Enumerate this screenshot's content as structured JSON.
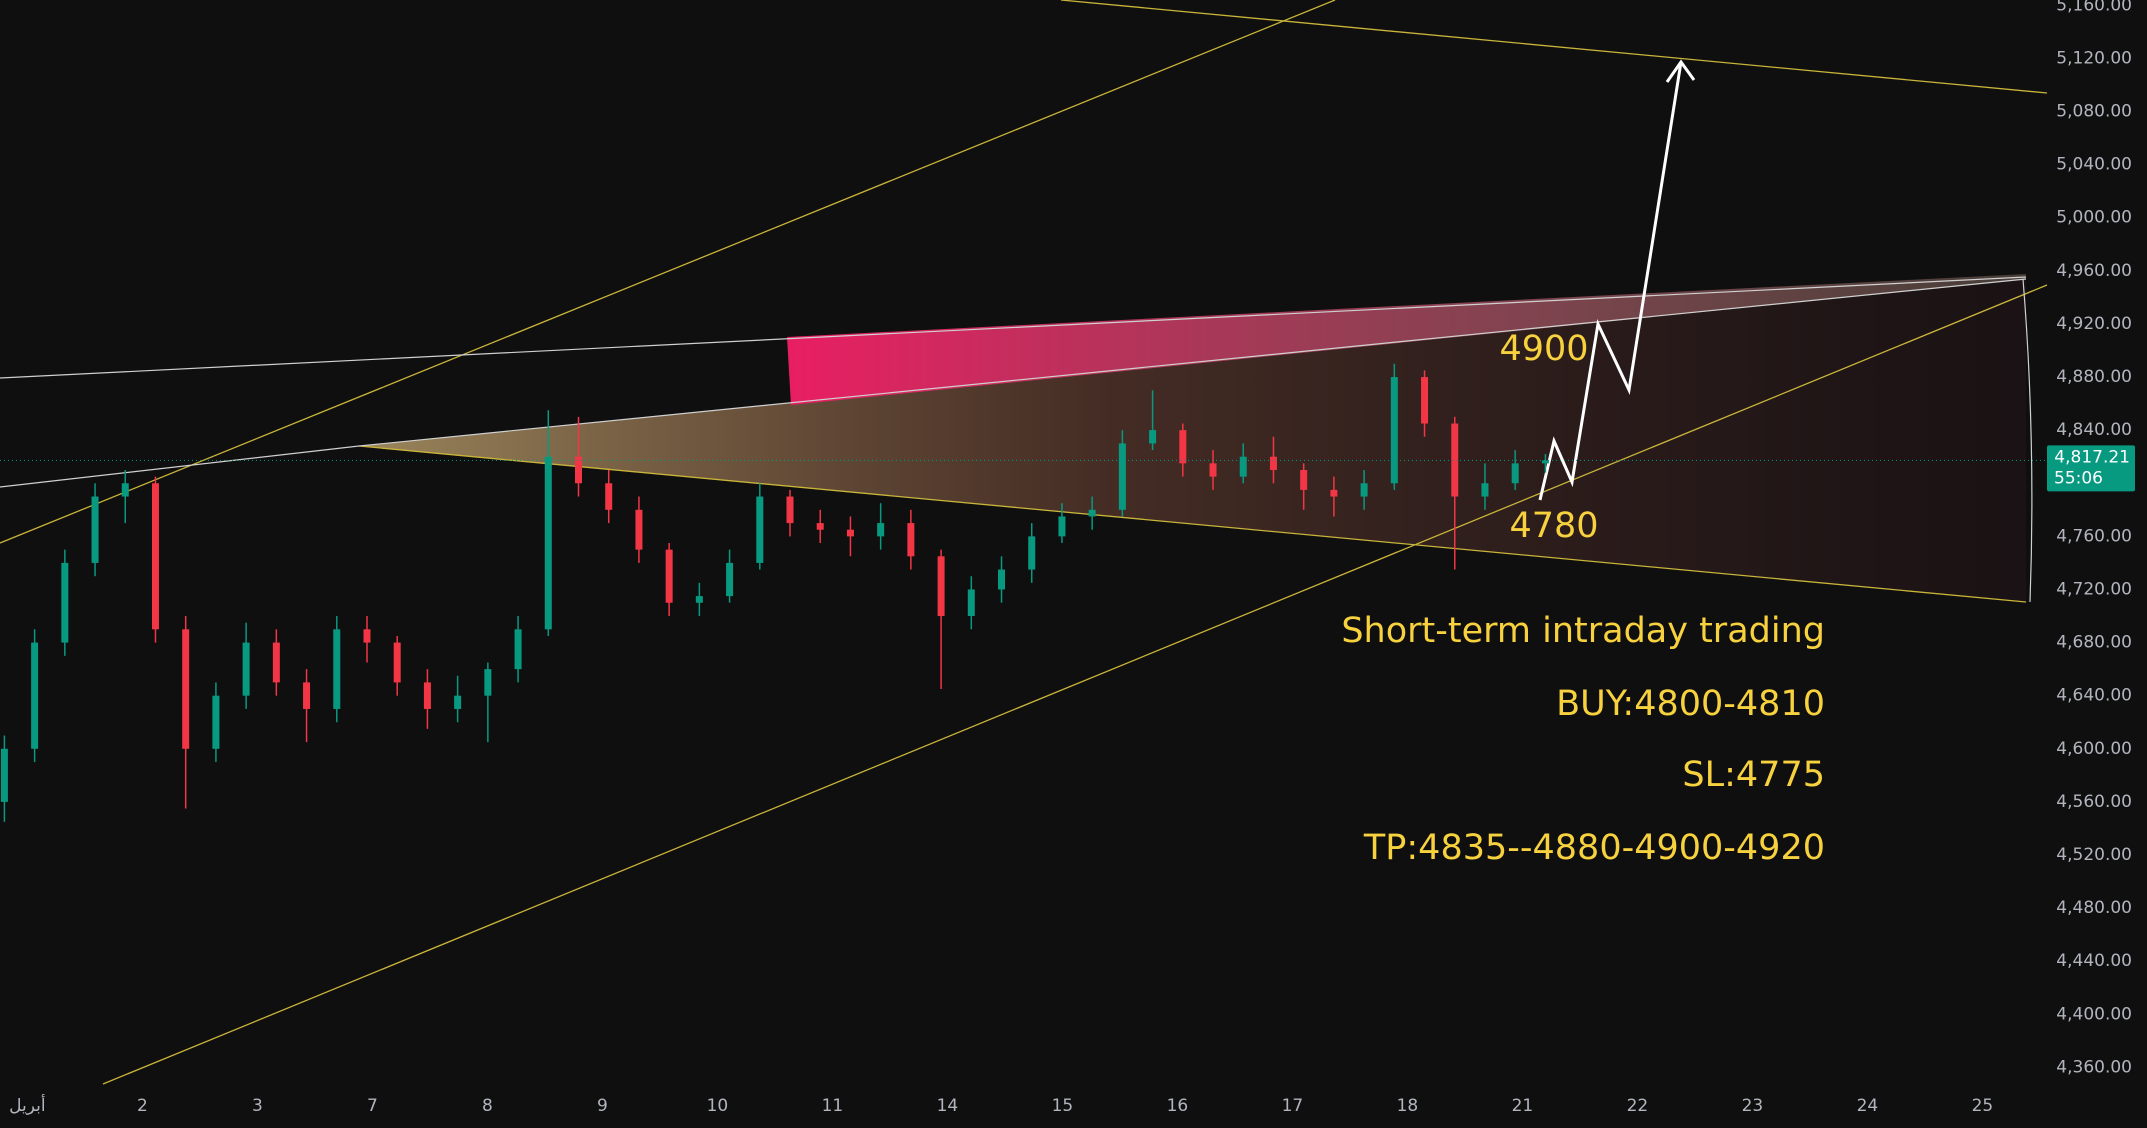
{
  "chart_data": {
    "type": "candlestick",
    "categories": [
      "أبريل",
      "2",
      "3",
      "7",
      "8",
      "9",
      "10",
      "11",
      "14",
      "15",
      "16",
      "17",
      "18",
      "21",
      "22",
      "23",
      "24",
      "25"
    ],
    "open": [
      4560,
      4600,
      4680,
      4740,
      4790,
      4800,
      4690,
      4600,
      4640,
      4680,
      4650,
      4630,
      4690,
      4680,
      4650,
      4630,
      4640,
      4660,
      4690,
      4820,
      4800,
      4780,
      4750,
      4710,
      4715,
      4740,
      4790,
      4770,
      4765,
      4760,
      4770,
      4745,
      4700,
      4720,
      4735,
      4760,
      4775,
      4780,
      4830,
      4840,
      4815,
      4805,
      4820,
      4810,
      4795,
      4790,
      4800,
      4880,
      4845,
      4790,
      4800,
      4815
    ],
    "high": [
      4610,
      4690,
      4750,
      4800,
      4810,
      4805,
      4700,
      4650,
      4695,
      4690,
      4660,
      4700,
      4700,
      4685,
      4660,
      4655,
      4665,
      4700,
      4855,
      4850,
      4810,
      4790,
      4755,
      4725,
      4750,
      4800,
      4795,
      4780,
      4775,
      4785,
      4780,
      4750,
      4730,
      4745,
      4770,
      4785,
      4790,
      4840,
      4870,
      4845,
      4825,
      4830,
      4835,
      4815,
      4805,
      4810,
      4890,
      4885,
      4850,
      4815,
      4825,
      4822
    ],
    "low": [
      4545,
      4590,
      4670,
      4730,
      4770,
      4680,
      4555,
      4590,
      4630,
      4640,
      4605,
      4620,
      4665,
      4640,
      4615,
      4620,
      4605,
      4650,
      4685,
      4790,
      4770,
      4740,
      4700,
      4700,
      4710,
      4735,
      4760,
      4755,
      4745,
      4750,
      4735,
      4645,
      4690,
      4710,
      4725,
      4755,
      4765,
      4775,
      4825,
      4805,
      4795,
      4800,
      4800,
      4780,
      4775,
      4780,
      4795,
      4835,
      4735,
      4780,
      4795,
      4808
    ],
    "close": [
      4600,
      4680,
      4740,
      4790,
      4800,
      4690,
      4600,
      4640,
      4680,
      4650,
      4630,
      4690,
      4680,
      4650,
      4630,
      4640,
      4660,
      4690,
      4820,
      4800,
      4780,
      4750,
      4710,
      4715,
      4740,
      4790,
      4770,
      4765,
      4760,
      4770,
      4745,
      4700,
      4720,
      4735,
      4760,
      4775,
      4780,
      4830,
      4840,
      4815,
      4805,
      4820,
      4810,
      4795,
      4790,
      4800,
      4880,
      4845,
      4790,
      4800,
      4815,
      4817.21
    ],
    "up_color": "#089981",
    "down_color": "#f23645",
    "ylim": [
      4343,
      5164
    ],
    "yticks": [
      {
        "value": 5160,
        "label": "5,160.00"
      },
      {
        "value": 5120,
        "label": "5,120.00"
      },
      {
        "value": 5080,
        "label": "5,080.00"
      },
      {
        "value": 5040,
        "label": "5,040.00"
      },
      {
        "value": 5000,
        "label": "5,000.00"
      },
      {
        "value": 4960,
        "label": "4,960.00"
      },
      {
        "value": 4920,
        "label": "4,920.00"
      },
      {
        "value": 4880,
        "label": "4,880.00"
      },
      {
        "value": 4840,
        "label": "4,840.00"
      },
      {
        "value": 4800,
        "label": "4,800.00"
      },
      {
        "value": 4760,
        "label": "4,760.00"
      },
      {
        "value": 4720,
        "label": "4,720.00"
      },
      {
        "value": 4680,
        "label": "4,680.00"
      },
      {
        "value": 4640,
        "label": "4,640.00"
      },
      {
        "value": 4600,
        "label": "4,600.00"
      },
      {
        "value": 4560,
        "label": "4,560.00"
      },
      {
        "value": 4520,
        "label": "4,520.00"
      },
      {
        "value": 4480,
        "label": "4,480.00"
      },
      {
        "value": 4440,
        "label": "4,440.00"
      },
      {
        "value": 4400,
        "label": "4,400.00"
      },
      {
        "value": 4360,
        "label": "4,360.00"
      }
    ],
    "grid": false,
    "last_price": {
      "value": 4817.21,
      "label": "4,817.21"
    },
    "countdown": "55:06",
    "annotations": [
      "4900",
      "4780",
      "Short-term intraday trading",
      "BUY:4800-4810",
      "SL:4775",
      "TP:4835--4880-4900-4920"
    ]
  }
}
